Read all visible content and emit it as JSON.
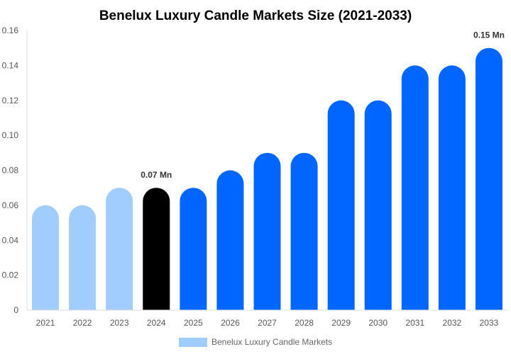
{
  "chart_data": {
    "type": "bar",
    "title": "Benelux Luxury Candle Markets Size (2021-2033)",
    "xlabel": "",
    "ylabel": "",
    "categories": [
      "2021",
      "2022",
      "2023",
      "2024",
      "2025",
      "2026",
      "2027",
      "2028",
      "2029",
      "2030",
      "2031",
      "2032",
      "2033"
    ],
    "series": [
      {
        "name": "Benelux Luxury Candle Markets",
        "values": [
          0.06,
          0.06,
          0.07,
          0.07,
          0.07,
          0.08,
          0.09,
          0.09,
          0.12,
          0.12,
          0.14,
          0.14,
          0.15
        ]
      }
    ],
    "bar_colors": [
      "#a1cdfe",
      "#a1cdfe",
      "#a1cdfe",
      "#000000",
      "#0066ff",
      "#0066ff",
      "#0066ff",
      "#0066ff",
      "#0066ff",
      "#0066ff",
      "#0066ff",
      "#0066ff",
      "#0066ff"
    ],
    "ylim": [
      0,
      0.16
    ],
    "yticks": [
      "0",
      "0.02",
      "0.04",
      "0.06",
      "0.08",
      "0.10",
      "0.12",
      "0.14",
      "0.16"
    ],
    "annotations": [
      {
        "category": "2024",
        "text": "0.07 Mn"
      },
      {
        "category": "2033",
        "text": "0.15 Mn"
      }
    ],
    "legend": {
      "label": "Benelux Luxury Candle Markets",
      "color": "#a1cdfe",
      "placement": "bottom-center"
    },
    "grid": false
  }
}
